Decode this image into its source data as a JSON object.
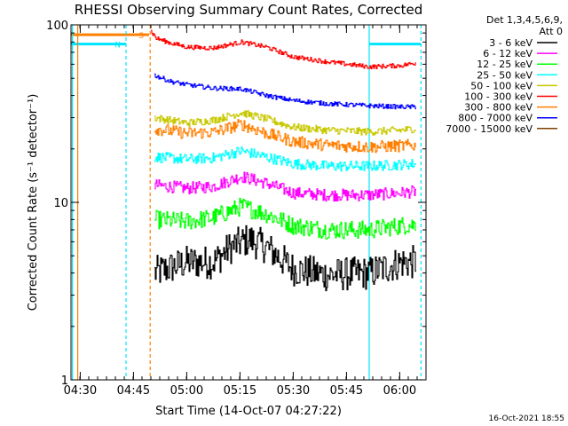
{
  "chart_data": {
    "type": "line",
    "title": "RHESSI Observing Summary Count Rates, Corrected",
    "xlabel": "Start Time (14-Oct-07 04:27:22)",
    "ylabel": "Corrected Count Rate (s⁻¹ detector⁻¹)",
    "yscale": "log",
    "ylim": [
      1,
      100
    ],
    "xlim_minutes": [
      0,
      100
    ],
    "x_ticks": [
      {
        "label": "04:30",
        "t": 2.6
      },
      {
        "label": "04:45",
        "t": 17.6
      },
      {
        "label": "05:00",
        "t": 32.6
      },
      {
        "label": "05:15",
        "t": 47.6
      },
      {
        "label": "05:30",
        "t": 62.6
      },
      {
        "label": "05:45",
        "t": 77.6
      },
      {
        "label": "06:00",
        "t": 92.6
      }
    ],
    "y_ticks": [
      {
        "label": "1",
        "v": 1
      },
      {
        "label": "10",
        "v": 10
      },
      {
        "label": "100",
        "v": 100
      }
    ],
    "legend_header": [
      "Det 1,3,4,5,6,9,",
      "Att 0"
    ],
    "legend_placement": "right",
    "footer_date": "16-Oct-2021 18:55",
    "markers": [
      {
        "kind": "flag",
        "label": "S",
        "color": "#ff7f00",
        "x0": 0,
        "x1": 22,
        "y": 88
      },
      {
        "kind": "flag",
        "label": "N",
        "color": "#00e5ff",
        "x0": 0,
        "x1": 15.5,
        "y": 78
      },
      {
        "kind": "flag",
        "label": "",
        "color": "#00e5ff",
        "x0": 84,
        "x1": 98.5,
        "y": 78
      },
      {
        "kind": "vline",
        "color": "#00e5ff",
        "dash": false,
        "t": 0.4
      },
      {
        "kind": "vline",
        "color": "#ff7f00",
        "dash": false,
        "t": 1.9
      },
      {
        "kind": "vline",
        "color": "#00e5ff",
        "dash": true,
        "t": 15.5
      },
      {
        "kind": "vline",
        "color": "#ff7f00",
        "dash": true,
        "t": 22.3
      },
      {
        "kind": "vline",
        "color": "#00e5ff",
        "dash": false,
        "t": 84.0
      },
      {
        "kind": "vline",
        "color": "#00e5ff",
        "dash": true,
        "t": 98.6
      }
    ],
    "series": [
      {
        "name": "3 - 6 keV",
        "color": "#000000",
        "noise": 0.22,
        "values": [
          {
            "t": 23.5,
            "v": 4.0
          },
          {
            "t": 32.6,
            "v": 4.6
          },
          {
            "t": 40,
            "v": 4.6
          },
          {
            "t": 45,
            "v": 5.6
          },
          {
            "t": 50,
            "v": 6.2
          },
          {
            "t": 55,
            "v": 5.6
          },
          {
            "t": 62.6,
            "v": 4.2
          },
          {
            "t": 72,
            "v": 3.9
          },
          {
            "t": 84,
            "v": 4.0
          },
          {
            "t": 93,
            "v": 4.6
          },
          {
            "t": 97,
            "v": 4.6
          }
        ]
      },
      {
        "name": "6 - 12 keV",
        "color": "#ff00ff",
        "noise": 0.08,
        "values": [
          {
            "t": 23.5,
            "v": 12.5
          },
          {
            "t": 32.6,
            "v": 12.0
          },
          {
            "t": 40,
            "v": 12.3
          },
          {
            "t": 48,
            "v": 14.0
          },
          {
            "t": 55,
            "v": 12.8
          },
          {
            "t": 62.6,
            "v": 11.3
          },
          {
            "t": 72,
            "v": 11.0
          },
          {
            "t": 84,
            "v": 11.0
          },
          {
            "t": 93,
            "v": 11.3
          },
          {
            "t": 97,
            "v": 11.5
          }
        ]
      },
      {
        "name": "12 - 25 keV",
        "color": "#00ff00",
        "noise": 0.12,
        "values": [
          {
            "t": 23.5,
            "v": 8.0
          },
          {
            "t": 32.6,
            "v": 7.8
          },
          {
            "t": 40,
            "v": 8.2
          },
          {
            "t": 48,
            "v": 9.5
          },
          {
            "t": 55,
            "v": 8.6
          },
          {
            "t": 62.6,
            "v": 7.4
          },
          {
            "t": 72,
            "v": 7.0
          },
          {
            "t": 84,
            "v": 7.0
          },
          {
            "t": 93,
            "v": 7.4
          },
          {
            "t": 97,
            "v": 7.5
          }
        ]
      },
      {
        "name": "25 - 50 keV",
        "color": "#00ffff",
        "noise": 0.07,
        "values": [
          {
            "t": 23.5,
            "v": 18.0
          },
          {
            "t": 32.6,
            "v": 17.5
          },
          {
            "t": 40,
            "v": 17.8
          },
          {
            "t": 48,
            "v": 19.5
          },
          {
            "t": 55,
            "v": 18.0
          },
          {
            "t": 62.6,
            "v": 16.5
          },
          {
            "t": 72,
            "v": 16.0
          },
          {
            "t": 84,
            "v": 16.0
          },
          {
            "t": 93,
            "v": 16.3
          },
          {
            "t": 97,
            "v": 16.5
          }
        ]
      },
      {
        "name": "50 - 100 keV",
        "color": "#c8c800",
        "noise": 0.05,
        "values": [
          {
            "t": 23.5,
            "v": 30.0
          },
          {
            "t": 32.6,
            "v": 28.0
          },
          {
            "t": 40,
            "v": 29.0
          },
          {
            "t": 48,
            "v": 32.0
          },
          {
            "t": 55,
            "v": 29.5
          },
          {
            "t": 62.6,
            "v": 26.5
          },
          {
            "t": 72,
            "v": 25.5
          },
          {
            "t": 84,
            "v": 25.0
          },
          {
            "t": 93,
            "v": 25.5
          },
          {
            "t": 97,
            "v": 26.0
          }
        ]
      },
      {
        "name": "100 - 300 keV",
        "color": "#ff0000",
        "noise": 0.03,
        "values": [
          {
            "t": 22.5,
            "v": 92.0
          },
          {
            "t": 24,
            "v": 84.0
          },
          {
            "t": 28,
            "v": 79.0
          },
          {
            "t": 32.6,
            "v": 75.0
          },
          {
            "t": 40,
            "v": 74.0
          },
          {
            "t": 48,
            "v": 80.0
          },
          {
            "t": 55,
            "v": 75.0
          },
          {
            "t": 62.6,
            "v": 66.0
          },
          {
            "t": 72,
            "v": 62.0
          },
          {
            "t": 84,
            "v": 58.0
          },
          {
            "t": 93,
            "v": 59.0
          },
          {
            "t": 97,
            "v": 61.0
          }
        ]
      },
      {
        "name": "300 - 800 keV",
        "color": "#ff7f00",
        "noise": 0.08,
        "values": [
          {
            "t": 23.5,
            "v": 26.0
          },
          {
            "t": 32.6,
            "v": 24.5
          },
          {
            "t": 40,
            "v": 24.8
          },
          {
            "t": 48,
            "v": 27.5
          },
          {
            "t": 55,
            "v": 24.5
          },
          {
            "t": 62.6,
            "v": 22.0
          },
          {
            "t": 72,
            "v": 21.0
          },
          {
            "t": 84,
            "v": 20.5
          },
          {
            "t": 93,
            "v": 20.8
          },
          {
            "t": 97,
            "v": 21.0
          }
        ]
      },
      {
        "name": "800 - 7000 keV",
        "color": "#0000ff",
        "noise": 0.03,
        "values": [
          {
            "t": 23.5,
            "v": 52.0
          },
          {
            "t": 28,
            "v": 48.0
          },
          {
            "t": 32.6,
            "v": 46.0
          },
          {
            "t": 40,
            "v": 44.0
          },
          {
            "t": 48,
            "v": 43.5
          },
          {
            "t": 55,
            "v": 40.0
          },
          {
            "t": 62.6,
            "v": 37.5
          },
          {
            "t": 72,
            "v": 36.0
          },
          {
            "t": 84,
            "v": 35.0
          },
          {
            "t": 93,
            "v": 34.5
          },
          {
            "t": 97,
            "v": 34.5
          }
        ]
      },
      {
        "name": "7000 - 15000 keV",
        "color": "#7f3f00",
        "noise": 0,
        "values": []
      }
    ]
  }
}
